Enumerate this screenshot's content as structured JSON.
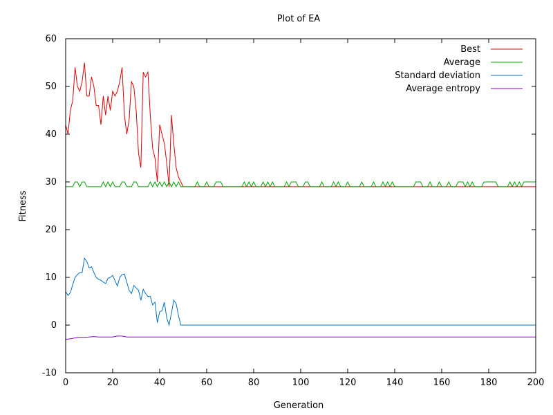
{
  "colors": {
    "best": "#e00000",
    "average": "#00a000",
    "standard_deviation": "#0070c0",
    "average_entropy": "#9000d0",
    "axis": "#000000"
  },
  "chart_data": {
    "type": "line",
    "title": "Plot of EA",
    "xlabel": "Generation",
    "ylabel": "Fitness",
    "xlim": [
      0,
      200
    ],
    "ylim": [
      -10,
      60
    ],
    "xticks": [
      0,
      20,
      40,
      60,
      80,
      100,
      120,
      140,
      160,
      180,
      200
    ],
    "yticks": [
      -10,
      0,
      10,
      20,
      30,
      40,
      50,
      60
    ],
    "grid": false,
    "legend_position": "top-right",
    "series": [
      {
        "name": "Best",
        "color_key": "best",
        "points": [
          [
            0,
            42
          ],
          [
            1,
            40
          ],
          [
            2,
            45
          ],
          [
            3,
            47
          ],
          [
            4,
            54
          ],
          [
            5,
            50
          ],
          [
            6,
            49
          ],
          [
            7,
            51
          ],
          [
            8,
            55
          ],
          [
            9,
            48
          ],
          [
            10,
            48
          ],
          [
            11,
            52
          ],
          [
            12,
            50
          ],
          [
            13,
            46
          ],
          [
            14,
            46
          ],
          [
            15,
            42
          ],
          [
            16,
            48
          ],
          [
            17,
            44
          ],
          [
            18,
            48
          ],
          [
            19,
            45
          ],
          [
            20,
            49
          ],
          [
            21,
            48
          ],
          [
            22,
            49
          ],
          [
            23,
            51
          ],
          [
            24,
            54
          ],
          [
            25,
            44
          ],
          [
            26,
            40
          ],
          [
            27,
            43
          ],
          [
            28,
            51
          ],
          [
            29,
            50
          ],
          [
            30,
            45
          ],
          [
            31,
            36
          ],
          [
            32,
            33
          ],
          [
            33,
            53
          ],
          [
            34,
            52
          ],
          [
            35,
            53
          ],
          [
            36,
            44
          ],
          [
            37,
            37
          ],
          [
            38,
            35
          ],
          [
            39,
            30
          ],
          [
            40,
            42
          ],
          [
            41,
            40
          ],
          [
            42,
            38
          ],
          [
            43,
            34
          ],
          [
            44,
            29
          ],
          [
            45,
            44
          ],
          [
            46,
            38
          ],
          [
            47,
            33
          ],
          [
            48,
            31
          ],
          [
            49,
            30
          ],
          [
            50,
            29
          ],
          [
            200,
            29
          ]
        ]
      },
      {
        "name": "Average",
        "color_key": "average",
        "points": [
          [
            0,
            29
          ],
          [
            3,
            29
          ],
          [
            4,
            30
          ],
          [
            5,
            30
          ],
          [
            6,
            29
          ],
          [
            7,
            30
          ],
          [
            8,
            30
          ],
          [
            9,
            29
          ],
          [
            15,
            29
          ],
          [
            16,
            30
          ],
          [
            17,
            29
          ],
          [
            18,
            30
          ],
          [
            19,
            29
          ],
          [
            20,
            30
          ],
          [
            21,
            29
          ],
          [
            23,
            29
          ],
          [
            24,
            30
          ],
          [
            25,
            30
          ],
          [
            26,
            29
          ],
          [
            28,
            29
          ],
          [
            29,
            30
          ],
          [
            30,
            30
          ],
          [
            31,
            29
          ],
          [
            35,
            29
          ],
          [
            36,
            30
          ],
          [
            37,
            29
          ],
          [
            38,
            30
          ],
          [
            39,
            29
          ],
          [
            40,
            30
          ],
          [
            41,
            29
          ],
          [
            42,
            30
          ],
          [
            43,
            29
          ],
          [
            44,
            30
          ],
          [
            45,
            29
          ],
          [
            46,
            30
          ],
          [
            47,
            29
          ],
          [
            48,
            30
          ],
          [
            49,
            29
          ],
          [
            55,
            29
          ],
          [
            56,
            30
          ],
          [
            57,
            29
          ],
          [
            59,
            29
          ],
          [
            60,
            30
          ],
          [
            61,
            29
          ],
          [
            63,
            29
          ],
          [
            64,
            30
          ],
          [
            66,
            30
          ],
          [
            67,
            29
          ],
          [
            75,
            29
          ],
          [
            76,
            30
          ],
          [
            77,
            29
          ],
          [
            78,
            30
          ],
          [
            79,
            29
          ],
          [
            80,
            30
          ],
          [
            81,
            29
          ],
          [
            83,
            29
          ],
          [
            84,
            30
          ],
          [
            85,
            29
          ],
          [
            86,
            30
          ],
          [
            87,
            29
          ],
          [
            88,
            30
          ],
          [
            89,
            29
          ],
          [
            93,
            29
          ],
          [
            94,
            30
          ],
          [
            95,
            29
          ],
          [
            96,
            30
          ],
          [
            98,
            30
          ],
          [
            99,
            29
          ],
          [
            101,
            29
          ],
          [
            102,
            30
          ],
          [
            103,
            30
          ],
          [
            104,
            29
          ],
          [
            108,
            29
          ],
          [
            109,
            30
          ],
          [
            110,
            29
          ],
          [
            113,
            29
          ],
          [
            114,
            30
          ],
          [
            115,
            29
          ],
          [
            116,
            30
          ],
          [
            117,
            29
          ],
          [
            119,
            29
          ],
          [
            120,
            30
          ],
          [
            121,
            29
          ],
          [
            125,
            29
          ],
          [
            126,
            30
          ],
          [
            127,
            29
          ],
          [
            130,
            29
          ],
          [
            131,
            30
          ],
          [
            132,
            29
          ],
          [
            134,
            29
          ],
          [
            135,
            30
          ],
          [
            136,
            29
          ],
          [
            137,
            30
          ],
          [
            138,
            29
          ],
          [
            139,
            30
          ],
          [
            140,
            29
          ],
          [
            148,
            29
          ],
          [
            149,
            30
          ],
          [
            151,
            30
          ],
          [
            152,
            29
          ],
          [
            154,
            29
          ],
          [
            155,
            30
          ],
          [
            156,
            29
          ],
          [
            158,
            29
          ],
          [
            159,
            30
          ],
          [
            160,
            29
          ],
          [
            162,
            29
          ],
          [
            163,
            30
          ],
          [
            164,
            29
          ],
          [
            166,
            29
          ],
          [
            167,
            30
          ],
          [
            169,
            30
          ],
          [
            170,
            29
          ],
          [
            171,
            30
          ],
          [
            172,
            29
          ],
          [
            173,
            30
          ],
          [
            174,
            29
          ],
          [
            177,
            29
          ],
          [
            178,
            30
          ],
          [
            183,
            30
          ],
          [
            184,
            29
          ],
          [
            188,
            29
          ],
          [
            189,
            30
          ],
          [
            190,
            29
          ],
          [
            191,
            30
          ],
          [
            192,
            29
          ],
          [
            193,
            30
          ],
          [
            194,
            29
          ],
          [
            195,
            30
          ],
          [
            200,
            30
          ]
        ]
      },
      {
        "name": "Standard deviation",
        "color_key": "standard_deviation",
        "points": [
          [
            0,
            7
          ],
          [
            1,
            6.2
          ],
          [
            2,
            6.8
          ],
          [
            3,
            8.5
          ],
          [
            4,
            10
          ],
          [
            5,
            10.6
          ],
          [
            6,
            11
          ],
          [
            7,
            11
          ],
          [
            8,
            14
          ],
          [
            9,
            13.3
          ],
          [
            10,
            12
          ],
          [
            11,
            12.2
          ],
          [
            12,
            11
          ],
          [
            13,
            10
          ],
          [
            14,
            9.6
          ],
          [
            15,
            9.4
          ],
          [
            16,
            9
          ],
          [
            17,
            8.7
          ],
          [
            18,
            9.8
          ],
          [
            19,
            10
          ],
          [
            20,
            10.4
          ],
          [
            21,
            9.3
          ],
          [
            22,
            8.2
          ],
          [
            23,
            10
          ],
          [
            24,
            10.6
          ],
          [
            25,
            10.7
          ],
          [
            26,
            9
          ],
          [
            27,
            7.3
          ],
          [
            28,
            6.6
          ],
          [
            29,
            8.3
          ],
          [
            30,
            7.8
          ],
          [
            31,
            7.3
          ],
          [
            32,
            5.2
          ],
          [
            33,
            7.5
          ],
          [
            34,
            6.6
          ],
          [
            35,
            6
          ],
          [
            36,
            6
          ],
          [
            37,
            4.2
          ],
          [
            38,
            4.8
          ],
          [
            39,
            0.5
          ],
          [
            40,
            2.8
          ],
          [
            41,
            3
          ],
          [
            42,
            4.8
          ],
          [
            43,
            1.5
          ],
          [
            44,
            0
          ],
          [
            45,
            2.5
          ],
          [
            46,
            5.2
          ],
          [
            47,
            4.5
          ],
          [
            48,
            2
          ],
          [
            49,
            0
          ],
          [
            200,
            0
          ]
        ]
      },
      {
        "name": "Average entropy",
        "color_key": "average_entropy",
        "points": [
          [
            0,
            -3
          ],
          [
            3,
            -2.8
          ],
          [
            5,
            -2.6
          ],
          [
            10,
            -2.5
          ],
          [
            12,
            -2.4
          ],
          [
            14,
            -2.5
          ],
          [
            20,
            -2.5
          ],
          [
            22,
            -2.3
          ],
          [
            24,
            -2.3
          ],
          [
            26,
            -2.5
          ],
          [
            30,
            -2.5
          ],
          [
            200,
            -2.5
          ]
        ]
      }
    ]
  }
}
